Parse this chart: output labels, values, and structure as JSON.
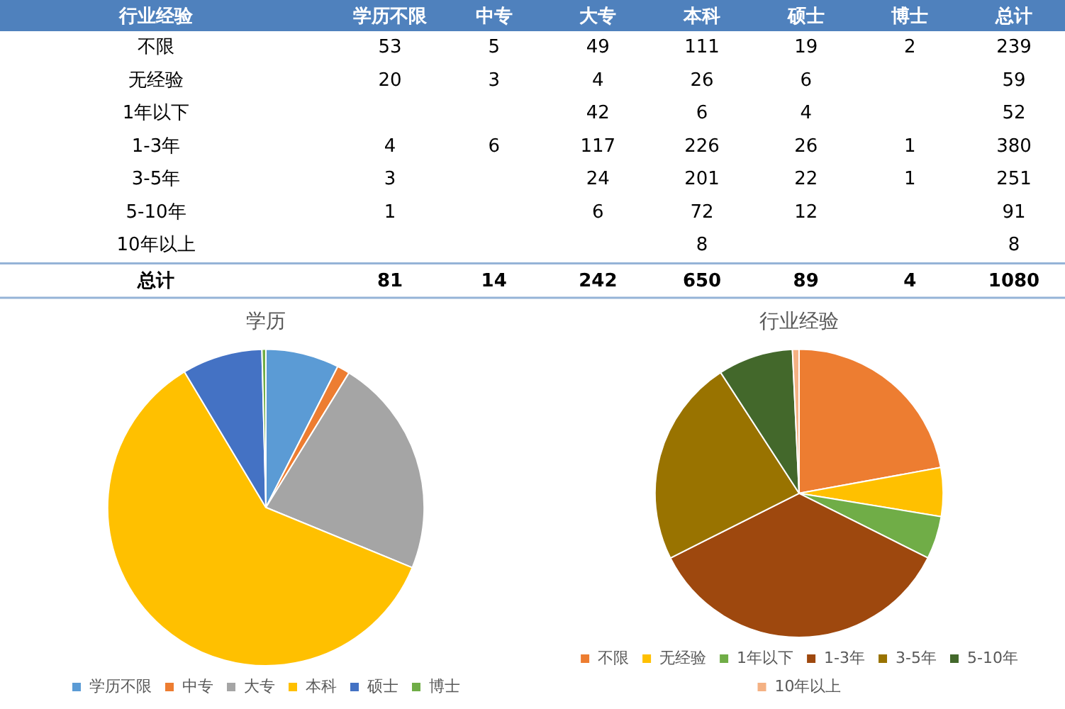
{
  "chart_data": [
    {
      "type": "heatmap",
      "ylabel": "行业经验",
      "data_labels": true,
      "categories": [
        "学历不限",
        "中专",
        "大专",
        "本科",
        "硕士",
        "博士",
        "总计"
      ],
      "y_categories": [
        "不限",
        "无经验",
        "1年以下",
        "1-3年",
        "3-5年",
        "5-10年",
        "10年以上",
        "总计"
      ],
      "cells": [
        [
          53,
          5,
          49,
          111,
          19,
          2,
          239
        ],
        [
          20,
          3,
          4,
          26,
          6,
          null,
          59
        ],
        [
          null,
          null,
          42,
          6,
          4,
          null,
          52
        ],
        [
          4,
          6,
          117,
          226,
          26,
          1,
          380
        ],
        [
          3,
          null,
          24,
          201,
          22,
          1,
          251
        ],
        [
          1,
          null,
          6,
          72,
          12,
          null,
          91
        ],
        [
          null,
          null,
          null,
          8,
          null,
          null,
          8
        ],
        [
          81,
          14,
          242,
          650,
          89,
          4,
          1080
        ]
      ]
    },
    {
      "type": "pie",
      "title": "学历",
      "categories": [
        "学历不限",
        "中专",
        "大专",
        "本科",
        "硕士",
        "博士"
      ],
      "values": [
        7.5,
        1.3,
        22.4,
        60.2,
        8.2,
        0.4
      ],
      "colors": [
        "#5b9bd5",
        "#ed7d31",
        "#a5a5a5",
        "#ffc000",
        "#4472c4",
        "#70ad47"
      ],
      "legend": "bottom"
    },
    {
      "type": "pie",
      "title": "行业经验",
      "categories": [
        "不限",
        "无经验",
        "1年以下",
        "1-3年",
        "3-5年",
        "5-10年",
        "10年以上"
      ],
      "values": [
        22.13,
        5.46,
        4.81,
        35.19,
        23.24,
        8.43,
        0.74
      ],
      "colors": [
        "#ed7d31",
        "#ffc000",
        "#70ad47",
        "#9e480e",
        "#997300",
        "#43682b",
        "#f4b183"
      ],
      "legend": "bottom"
    }
  ]
}
